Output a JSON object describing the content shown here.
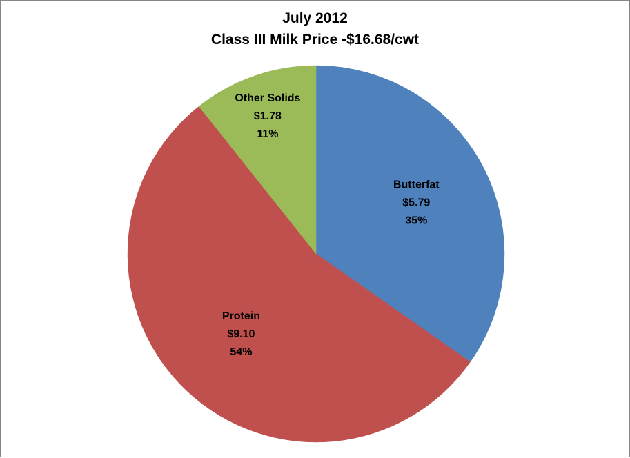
{
  "chart_data": {
    "type": "pie",
    "title": "July 2012",
    "subtitle": "Class III Milk Price -$16.68/cwt",
    "slices": [
      {
        "name": "Butterfat",
        "value": 5.79,
        "value_label": "$5.79",
        "percent_label": "35%",
        "color": "#4F81BD"
      },
      {
        "name": "Protein",
        "value": 9.1,
        "value_label": "$9.10",
        "percent_label": "54%",
        "color": "#C0504D"
      },
      {
        "name": "Other Solids",
        "value": 1.78,
        "value_label": "$1.78",
        "percent_label": "11%",
        "color": "#9BBB59"
      }
    ],
    "start_angle": "12 o'clock",
    "direction": "clockwise",
    "legend": "none"
  }
}
